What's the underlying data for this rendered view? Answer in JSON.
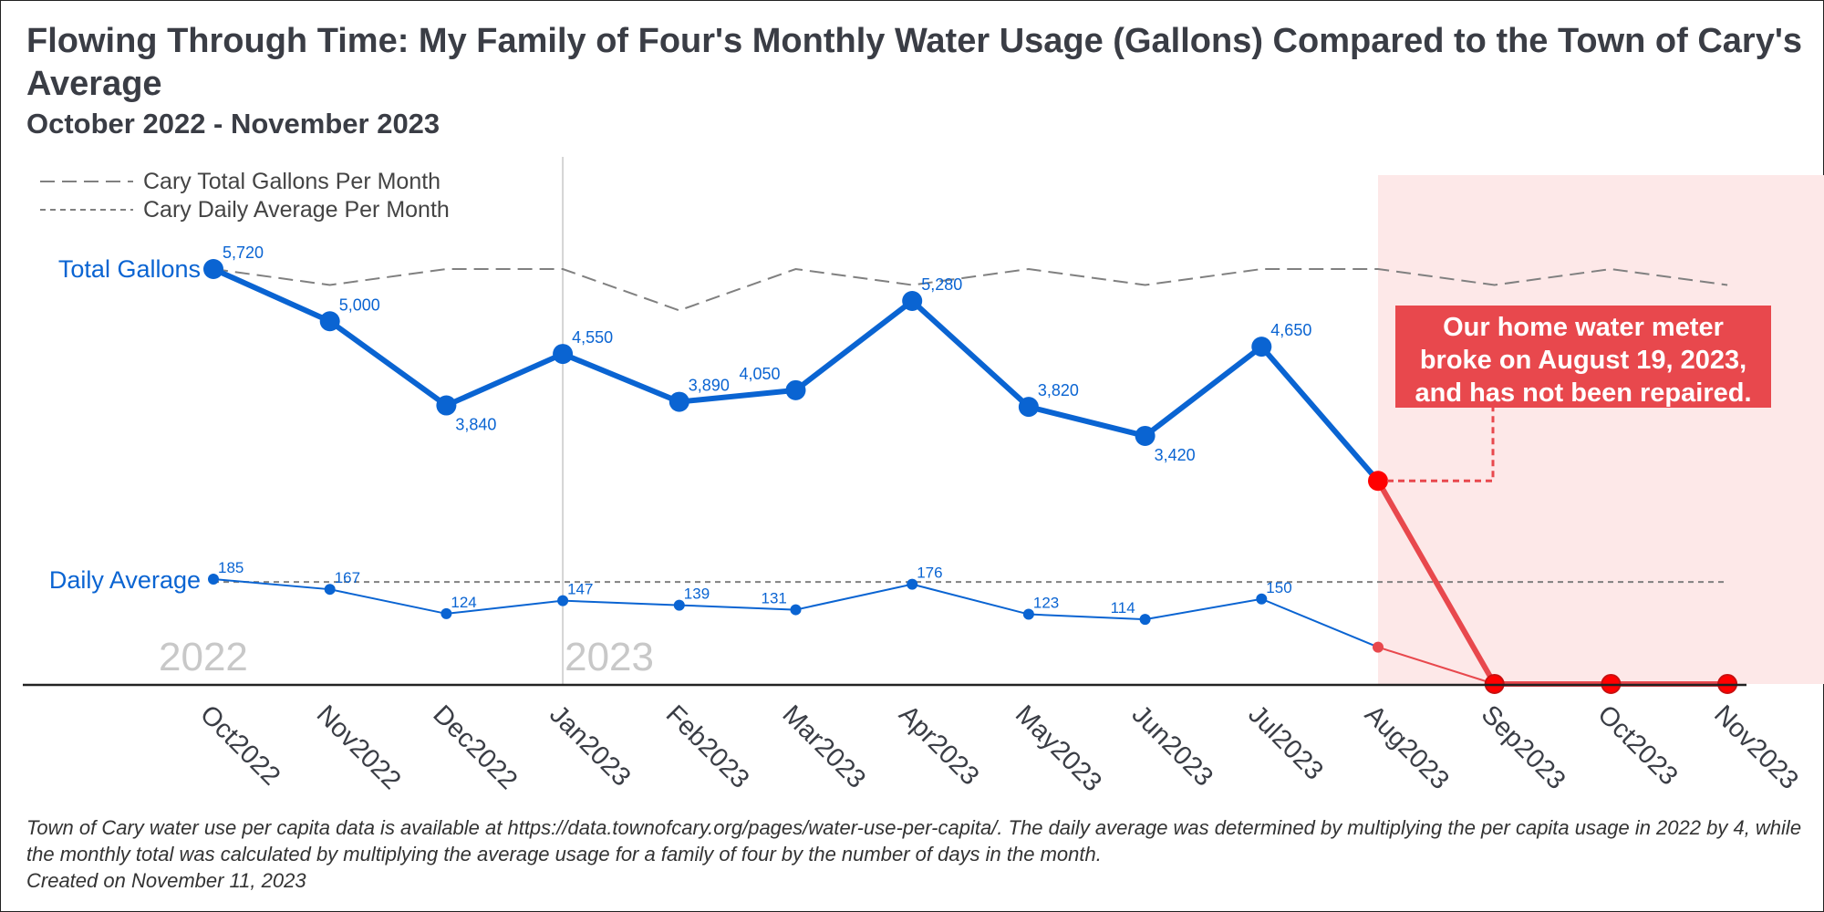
{
  "title": "Flowing Through Time: My Family of Four's Monthly Water Usage (Gallons) Compared to the Town of Cary's Average",
  "subtitle": "October 2022 - November 2023",
  "caption": {
    "line1": "Town of Cary water use per capita data is available at https://data.townofcary.org/pages/water-use-per-capita/. The daily average was determined by multiplying the per capita usage in 2022 by 4, while the monthly total was calculated by multiplying the average usage for a family of four by the number of days in the month.",
    "line2": "Created on November 11, 2023"
  },
  "colors": {
    "family": "#0a64d2",
    "broken": "#e8484d",
    "broken_point": "#ff0000",
    "cary": "#808080",
    "shade": "#fde8e8",
    "year_label": "#c8c8c8"
  },
  "chart_data": {
    "type": "line",
    "categories": [
      "Oct2022",
      "Nov2022",
      "Dec2022",
      "Jan2023",
      "Feb2023",
      "Mar2023",
      "Apr2023",
      "May2023",
      "Jun2023",
      "Jul2023",
      "Aug2023",
      "Sep2023",
      "Oct2023",
      "Nov2023"
    ],
    "series": [
      {
        "name": "Total Gallons",
        "values": [
          5720,
          5000,
          3840,
          4550,
          3890,
          4050,
          5280,
          3820,
          3420,
          4650,
          null,
          0,
          0,
          0
        ]
      },
      {
        "name": "Daily Average",
        "values": [
          185,
          167,
          124,
          147,
          139,
          131,
          176,
          123,
          114,
          150,
          null,
          0,
          0,
          0
        ]
      },
      {
        "name": "Cary Total Gallons Per Month",
        "values": [
          5720,
          5500,
          5720,
          5720,
          5150,
          5720,
          5500,
          5720,
          5500,
          5720,
          5720,
          5500,
          5720,
          5500
        ]
      },
      {
        "name": "Cary Daily Average Per Month",
        "values": [
          180,
          180,
          180,
          180,
          180,
          180,
          180,
          180,
          180,
          180,
          180,
          180,
          180,
          180
        ]
      }
    ],
    "data_labels": {
      "total": [
        "5,720",
        "5,000",
        "3,840",
        "4,550",
        "3,890",
        "4,050",
        "5,280",
        "3,820",
        "3,420",
        "4,650"
      ],
      "daily": [
        "185",
        "167",
        "124",
        "147",
        "139",
        "131",
        "176",
        "123",
        "114",
        "150"
      ]
    },
    "estimated_aug2023": {
      "total": 2800,
      "daily": 65
    },
    "series_labels": {
      "total": "Total Gallons",
      "daily": "Daily Average"
    },
    "legend": [
      "Cary Total Gallons Per Month",
      "Cary Daily Average Per Month"
    ],
    "legend_position": "top-left",
    "year_labels": [
      {
        "text": "2022",
        "category": "Oct2022"
      },
      {
        "text": "2023",
        "category": "Jan2023"
      }
    ],
    "year_divider_category": "Jan2023",
    "highlight_start_category": "Aug2023",
    "annotation": {
      "line1": "Our home water meter",
      "line2": "broke on August 19, 2023,",
      "line3": "and has not been repaired."
    },
    "grid": false
  }
}
